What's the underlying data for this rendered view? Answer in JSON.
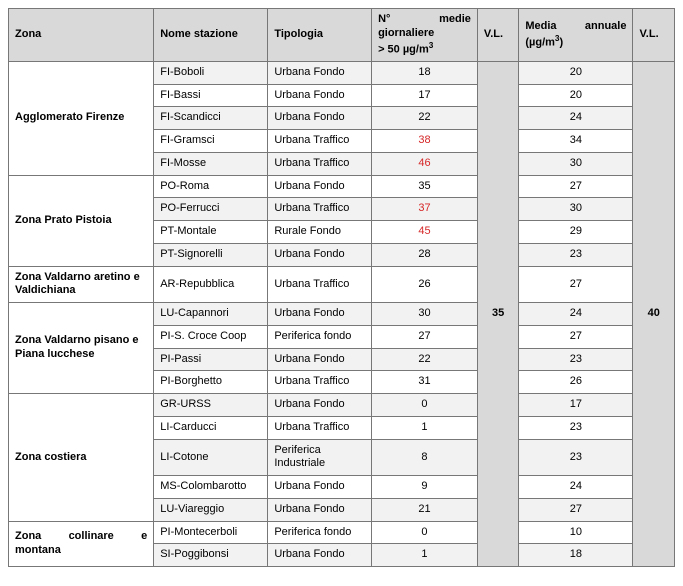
{
  "columns": {
    "zone": "Zona",
    "station": "Nome stazione",
    "type": "Tipologia",
    "daily_line1_parts": [
      "N°",
      "medie"
    ],
    "daily_line2": "giornaliere",
    "daily_line3_prefix": "> 50 µg/m",
    "daily_line3_sup": "3",
    "vl": "V.L.",
    "annual_line1_parts": [
      "Media",
      "annuale"
    ],
    "annual_line2_prefix": "(µg/m",
    "annual_line2_sup": "3",
    "annual_line2_suffix": ")"
  },
  "vl_daily": "35",
  "vl_annual": "40",
  "daily_threshold": 35,
  "zones": [
    {
      "name": "Agglomerato Firenze",
      "rows": [
        {
          "station": "FI-Boboli",
          "type": "Urbana Fondo",
          "daily": 18,
          "annual": 20
        },
        {
          "station": "FI-Bassi",
          "type": "Urbana Fondo",
          "daily": 17,
          "annual": 20
        },
        {
          "station": "FI-Scandicci",
          "type": "Urbana Fondo",
          "daily": 22,
          "annual": 24
        },
        {
          "station": "FI-Gramsci",
          "type": "Urbana Traffico",
          "daily": 38,
          "annual": 34
        },
        {
          "station": "FI-Mosse",
          "type": "Urbana Traffico",
          "daily": 46,
          "annual": 30
        }
      ]
    },
    {
      "name": "Zona Prato Pistoia",
      "rows": [
        {
          "station": "PO-Roma",
          "type": "Urbana Fondo",
          "daily": 35,
          "annual": 27
        },
        {
          "station": "PO-Ferrucci",
          "type": "Urbana Traffico",
          "daily": 37,
          "annual": 30
        },
        {
          "station": "PT-Montale",
          "type": "Rurale Fondo",
          "daily": 45,
          "annual": 29
        },
        {
          "station": "PT-Signorelli",
          "type": "Urbana Fondo",
          "daily": 28,
          "annual": 23
        }
      ]
    },
    {
      "name": "Zona Valdarno aretino e Valdichiana",
      "rows": [
        {
          "station": "AR-Repubblica",
          "type": "Urbana Traffico",
          "daily": 26,
          "annual": 27
        }
      ]
    },
    {
      "name": "Zona Valdarno pisano e Piana lucchese",
      "rows": [
        {
          "station": "LU-Capannori",
          "type": "Urbana Fondo",
          "daily": 30,
          "annual": 24
        },
        {
          "station": "PI-S. Croce Coop",
          "type": "Periferica fondo",
          "daily": 27,
          "annual": 27
        },
        {
          "station": "PI-Passi",
          "type": "Urbana Fondo",
          "daily": 22,
          "annual": 23
        },
        {
          "station": "PI-Borghetto",
          "type": "Urbana Traffico",
          "daily": 31,
          "annual": 26
        }
      ]
    },
    {
      "name": "Zona costiera",
      "rows": [
        {
          "station": "GR-URSS",
          "type": "Urbana Fondo",
          "daily": 0,
          "annual": 17
        },
        {
          "station": "LI-Carducci",
          "type": "Urbana Traffico",
          "daily": 1,
          "annual": 23
        },
        {
          "station": "LI-Cotone",
          "type": "Periferica Industriale",
          "daily": 8,
          "annual": 23
        },
        {
          "station": "MS-Colombarotto",
          "type": "Urbana Fondo",
          "daily": 9,
          "annual": 24
        },
        {
          "station": "LU-Viareggio",
          "type": "Urbana Fondo",
          "daily": 21,
          "annual": 27
        }
      ]
    },
    {
      "name_parts": [
        "Zona",
        "collinare",
        "e"
      ],
      "name_line2": "montana",
      "justify": true,
      "rows": [
        {
          "station": "PI-Montecerboli",
          "type": "Periferica fondo",
          "daily": 0,
          "annual": 10
        },
        {
          "station": "SI-Poggibonsi",
          "type": "Urbana Fondo",
          "daily": 1,
          "annual": 18
        }
      ]
    }
  ],
  "col_widths": {
    "zone": 140,
    "station": 110,
    "type": 100,
    "daily": 102,
    "vl": 40,
    "annual": 110
  },
  "colors": {
    "header_bg": "#d9d9d9",
    "row_alt": "#f2f2f2",
    "exceed": "#d62728",
    "border": "#777777"
  }
}
